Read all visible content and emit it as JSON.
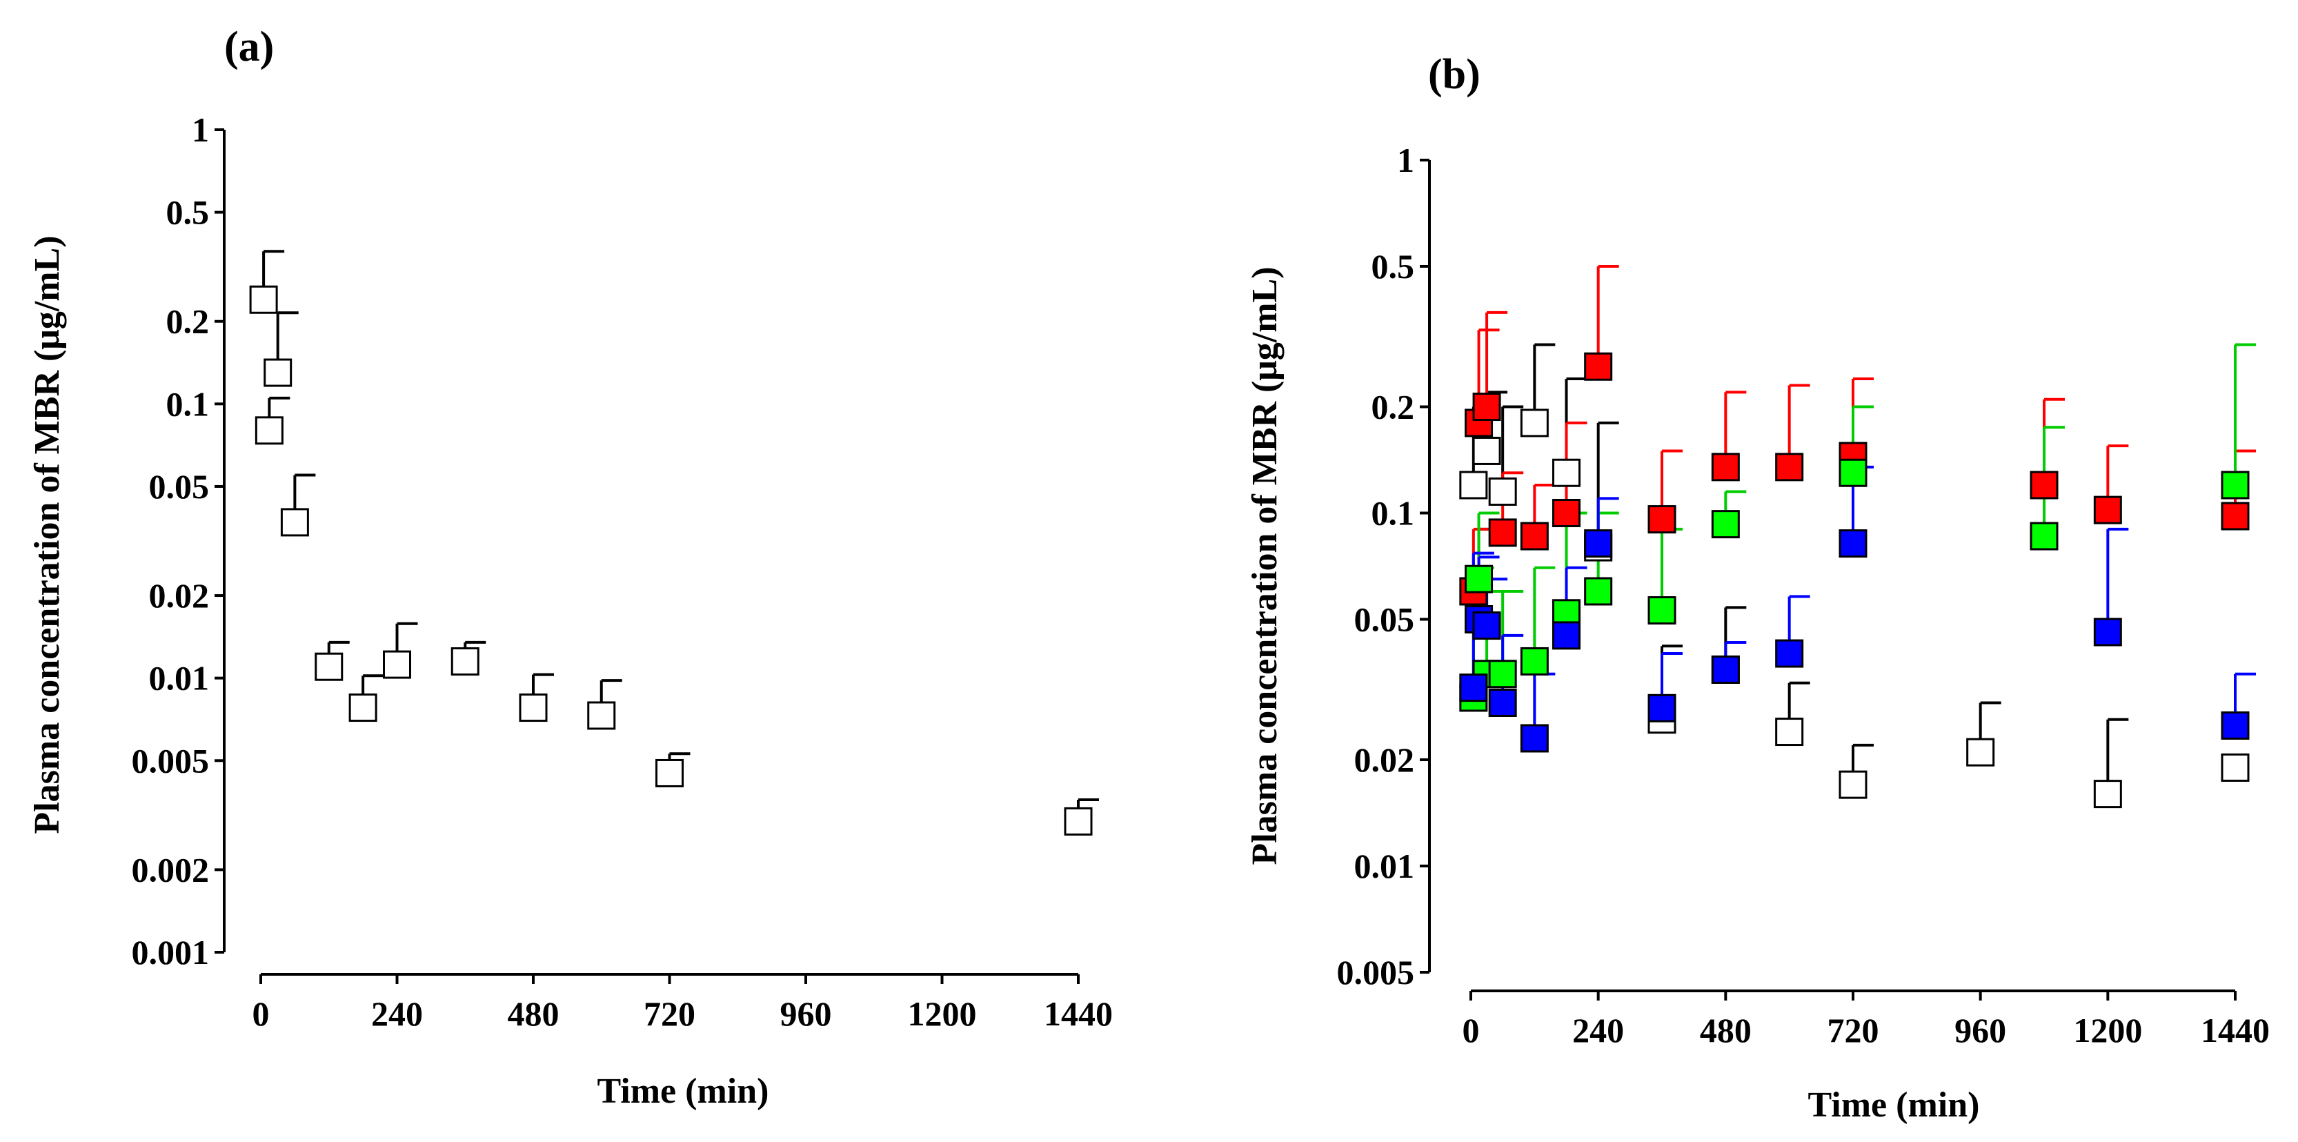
{
  "chart_data": [
    {
      "panel": "(a)",
      "type": "scatter",
      "xlabel": "Time (min)",
      "ylabel": "Plasma concentration of  MBR (μg/mL)",
      "yscale": "log",
      "ylim": [
        0.001,
        1
      ],
      "xlim": [
        -20,
        1500
      ],
      "xticks": [
        0,
        240,
        480,
        720,
        960,
        1200,
        1440
      ],
      "xtick_labels": [
        "0",
        "240",
        "480",
        "720",
        "960",
        "1200",
        "1440"
      ],
      "yticks": [
        1,
        0.5,
        0.2,
        0.1,
        0.05,
        0.02,
        0.01,
        0.005,
        0.002,
        0.001
      ],
      "ytick_labels": [
        "1",
        "0.5",
        "0.2",
        "0.1",
        "0.05",
        "0.02",
        "0.01",
        "0.005",
        "0.002",
        "0.001"
      ],
      "series": [
        {
          "name": "MBR",
          "marker": "open-square",
          "fill": "#ffffff",
          "color": "#000000",
          "x": [
            5,
            15,
            30,
            60,
            120,
            180,
            240,
            360,
            480,
            600,
            720,
            1440
          ],
          "y": [
            0.24,
            0.08,
            0.13,
            0.037,
            0.011,
            0.0078,
            0.0112,
            0.0115,
            0.0078,
            0.0073,
            0.0045,
            0.003
          ],
          "err_upper": [
            0.36,
            0.105,
            0.215,
            0.055,
            0.0135,
            0.0102,
            0.0158,
            0.0135,
            0.0103,
            0.0098,
            0.0053,
            0.0036
          ]
        }
      ]
    },
    {
      "panel": "(b)",
      "type": "scatter",
      "xlabel": "Time (min)",
      "ylabel": "Plasma concentration of  MBR (μg/mL)",
      "yscale": "log",
      "ylim": [
        0.005,
        1
      ],
      "xlim": [
        -20,
        1500
      ],
      "xticks": [
        0,
        240,
        480,
        720,
        960,
        1200,
        1440
      ],
      "xtick_labels": [
        "0",
        "240",
        "480",
        "720",
        "960",
        "1200",
        "1440"
      ],
      "yticks": [
        1,
        0.5,
        0.2,
        0.1,
        0.05,
        0.02,
        0.01,
        0.005
      ],
      "ytick_labels": [
        "1",
        "0.5",
        "0.2",
        "0.1",
        "0.05",
        "0.02",
        "0.01",
        "0.005"
      ],
      "series": [
        {
          "name": "white",
          "fill": "#ffffff",
          "color": "#000000",
          "x": [
            5,
            15,
            30,
            60,
            120,
            180,
            240,
            360,
            480,
            600,
            720,
            960,
            1200,
            1440
          ],
          "y": [
            0.12,
            0.05,
            0.15,
            0.115,
            0.18,
            0.13,
            0.08,
            0.026,
            0.036,
            0.024,
            0.017,
            0.021,
            0.016,
            0.019
          ],
          "err_upper": [
            0.2,
            0.09,
            0.22,
            0.2,
            0.3,
            0.24,
            0.18,
            0.042,
            0.054,
            0.033,
            0.022,
            0.029,
            0.026,
            null
          ]
        },
        {
          "name": "red",
          "fill": "#ff0000",
          "color": "#ff0000",
          "x": [
            5,
            15,
            30,
            60,
            120,
            180,
            240,
            360,
            480,
            600,
            720,
            1080,
            1200,
            1440
          ],
          "y": [
            0.06,
            0.18,
            0.2,
            0.088,
            0.086,
            0.1,
            0.26,
            0.096,
            0.135,
            0.135,
            0.145,
            0.12,
            0.102,
            0.098
          ],
          "err_upper": [
            0.09,
            0.33,
            0.37,
            0.13,
            0.12,
            0.18,
            0.5,
            0.15,
            0.22,
            0.23,
            0.24,
            0.21,
            0.155,
            0.15
          ]
        },
        {
          "name": "green",
          "fill": "#00ff00",
          "color": "#00cc00",
          "x": [
            5,
            15,
            30,
            60,
            120,
            180,
            240,
            360,
            480,
            720,
            1080,
            1440
          ],
          "y": [
            0.03,
            0.065,
            0.035,
            0.035,
            0.038,
            0.052,
            0.06,
            0.053,
            0.093,
            0.13,
            0.086,
            0.12
          ],
          "err_upper": [
            0.07,
            0.1,
            0.06,
            0.06,
            0.07,
            0.1,
            0.1,
            0.09,
            0.115,
            0.2,
            0.175,
            0.3
          ]
        },
        {
          "name": "blue",
          "fill": "#0000ff",
          "color": "#0000ff",
          "x": [
            5,
            15,
            30,
            60,
            120,
            180,
            240,
            360,
            480,
            600,
            720,
            1200,
            1440
          ],
          "y": [
            0.032,
            0.05,
            0.048,
            0.029,
            0.023,
            0.045,
            0.082,
            0.028,
            0.036,
            0.04,
            0.082,
            0.046,
            0.025
          ],
          "err_upper": [
            0.077,
            0.075,
            0.065,
            0.045,
            0.035,
            0.07,
            0.11,
            0.04,
            0.043,
            0.058,
            0.135,
            0.09,
            0.035
          ]
        }
      ]
    }
  ]
}
